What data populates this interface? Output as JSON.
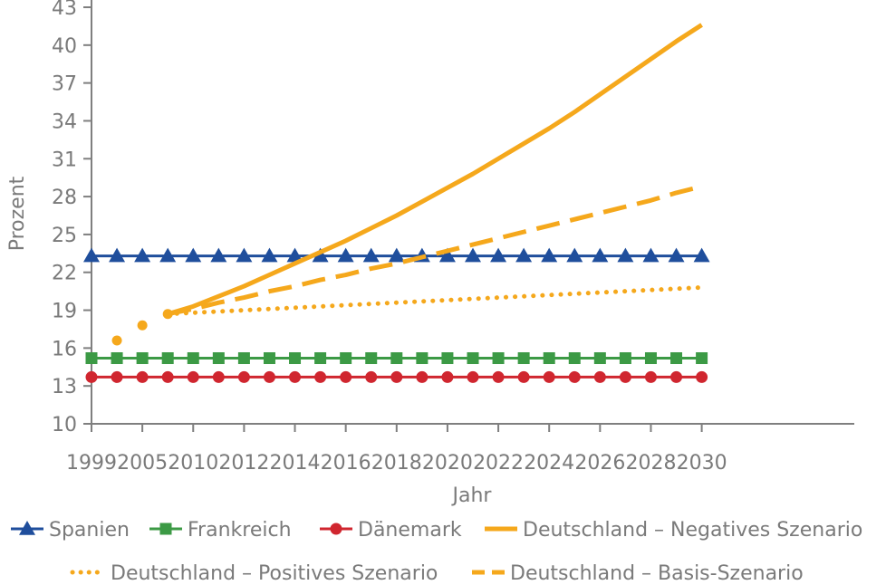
{
  "chart_data": {
    "type": "line",
    "xlabel": "Jahr",
    "ylabel": "Prozent",
    "ylim": [
      10,
      43
    ],
    "yticks": [
      10,
      13,
      16,
      19,
      22,
      25,
      28,
      31,
      34,
      37,
      40,
      43
    ],
    "xlim": [
      2000,
      2030
    ],
    "xticks": [
      {
        "x": 2000,
        "label": "1999"
      },
      {
        "x": 2002,
        "label": "2005"
      },
      {
        "x": 2004,
        "label": "2010"
      },
      {
        "x": 2006,
        "label": "2012"
      },
      {
        "x": 2008,
        "label": "2014"
      },
      {
        "x": 2010,
        "label": "2016"
      },
      {
        "x": 2012,
        "label": "2018"
      },
      {
        "x": 2014,
        "label": "2020"
      },
      {
        "x": 2016,
        "label": "2022"
      },
      {
        "x": 2018,
        "label": "2024"
      },
      {
        "x": 2020,
        "label": "2026"
      },
      {
        "x": 2022,
        "label": "2028"
      },
      {
        "x": 2024,
        "label": "2030"
      }
    ],
    "grid": false,
    "legend_position": "bottom",
    "colors": {
      "spanien": "#1f4e9c",
      "frankreich": "#3c9a45",
      "daenemark": "#d0262f",
      "deutschland": "#f5a81c",
      "axis": "#7f7f7f"
    },
    "series": [
      {
        "name": "Spanien",
        "key": "spanien",
        "style": "solid-marker",
        "marker": "triangle",
        "x": [
          2000,
          2001,
          2002,
          2003,
          2004,
          2005,
          2006,
          2007,
          2008,
          2009,
          2010,
          2011,
          2012,
          2013,
          2014,
          2015,
          2016,
          2017,
          2018,
          2019,
          2020,
          2021,
          2022,
          2023,
          2024
        ],
        "values": [
          23.3,
          23.3,
          23.3,
          23.3,
          23.3,
          23.3,
          23.3,
          23.3,
          23.3,
          23.3,
          23.3,
          23.3,
          23.3,
          23.3,
          23.3,
          23.3,
          23.3,
          23.3,
          23.3,
          23.3,
          23.3,
          23.3,
          23.3,
          23.3,
          23.3
        ]
      },
      {
        "name": "Frankreich",
        "key": "frankreich",
        "style": "solid-marker",
        "marker": "square",
        "x": [
          2000,
          2001,
          2002,
          2003,
          2004,
          2005,
          2006,
          2007,
          2008,
          2009,
          2010,
          2011,
          2012,
          2013,
          2014,
          2015,
          2016,
          2017,
          2018,
          2019,
          2020,
          2021,
          2022,
          2023,
          2024
        ],
        "values": [
          15.2,
          15.2,
          15.2,
          15.2,
          15.2,
          15.2,
          15.2,
          15.2,
          15.2,
          15.2,
          15.2,
          15.2,
          15.2,
          15.2,
          15.2,
          15.2,
          15.2,
          15.2,
          15.2,
          15.2,
          15.2,
          15.2,
          15.2,
          15.2,
          15.2
        ]
      },
      {
        "name": "Dänemark",
        "key": "daenemark",
        "style": "solid-marker",
        "marker": "circle",
        "x": [
          2000,
          2001,
          2002,
          2003,
          2004,
          2005,
          2006,
          2007,
          2008,
          2009,
          2010,
          2011,
          2012,
          2013,
          2014,
          2015,
          2016,
          2017,
          2018,
          2019,
          2020,
          2021,
          2022,
          2023,
          2024
        ],
        "values": [
          13.7,
          13.7,
          13.7,
          13.7,
          13.7,
          13.7,
          13.7,
          13.7,
          13.7,
          13.7,
          13.7,
          13.7,
          13.7,
          13.7,
          13.7,
          13.7,
          13.7,
          13.7,
          13.7,
          13.7,
          13.7,
          13.7,
          13.7,
          13.7,
          13.7
        ]
      },
      {
        "name": "Deutschland – Negatives Szenario",
        "key": "deutschland",
        "style": "solid",
        "x": [
          2003,
          2004,
          2005,
          2006,
          2007,
          2008,
          2009,
          2010,
          2011,
          2012,
          2013,
          2014,
          2015,
          2016,
          2017,
          2018,
          2019,
          2020,
          2021,
          2022,
          2023,
          2024
        ],
        "values": [
          18.7,
          19.3,
          20.1,
          20.9,
          21.8,
          22.7,
          23.6,
          24.5,
          25.5,
          26.5,
          27.6,
          28.7,
          29.8,
          31.0,
          32.2,
          33.4,
          34.7,
          36.1,
          37.5,
          38.9,
          40.3,
          41.6
        ]
      },
      {
        "name": "Deutschland – Positives Szenario",
        "key": "deutschland",
        "style": "dotted",
        "x": [
          2001,
          2002,
          2003,
          2004,
          2005,
          2006,
          2007,
          2008,
          2009,
          2010,
          2011,
          2012,
          2013,
          2014,
          2015,
          2016,
          2017,
          2018,
          2019,
          2020,
          2021,
          2022,
          2023,
          2024
        ],
        "values": [
          16.6,
          17.8,
          18.7,
          18.8,
          18.9,
          19.0,
          19.1,
          19.2,
          19.3,
          19.4,
          19.5,
          19.6,
          19.7,
          19.8,
          19.9,
          20.0,
          20.1,
          20.2,
          20.3,
          20.4,
          20.5,
          20.6,
          20.7,
          20.8
        ]
      },
      {
        "name": "Deutschland – Basis-Szenario",
        "key": "deutschland",
        "style": "dashed",
        "x": [
          2003,
          2004,
          2005,
          2006,
          2007,
          2008,
          2009,
          2010,
          2011,
          2012,
          2013,
          2014,
          2015,
          2016,
          2017,
          2018,
          2019,
          2020,
          2021,
          2022,
          2023,
          2024
        ],
        "values": [
          18.7,
          19.1,
          19.6,
          20.0,
          20.5,
          20.9,
          21.4,
          21.8,
          22.3,
          22.7,
          23.2,
          23.7,
          24.2,
          24.7,
          25.2,
          25.7,
          26.2,
          26.7,
          27.2,
          27.7,
          28.3,
          28.8
        ]
      }
    ]
  }
}
